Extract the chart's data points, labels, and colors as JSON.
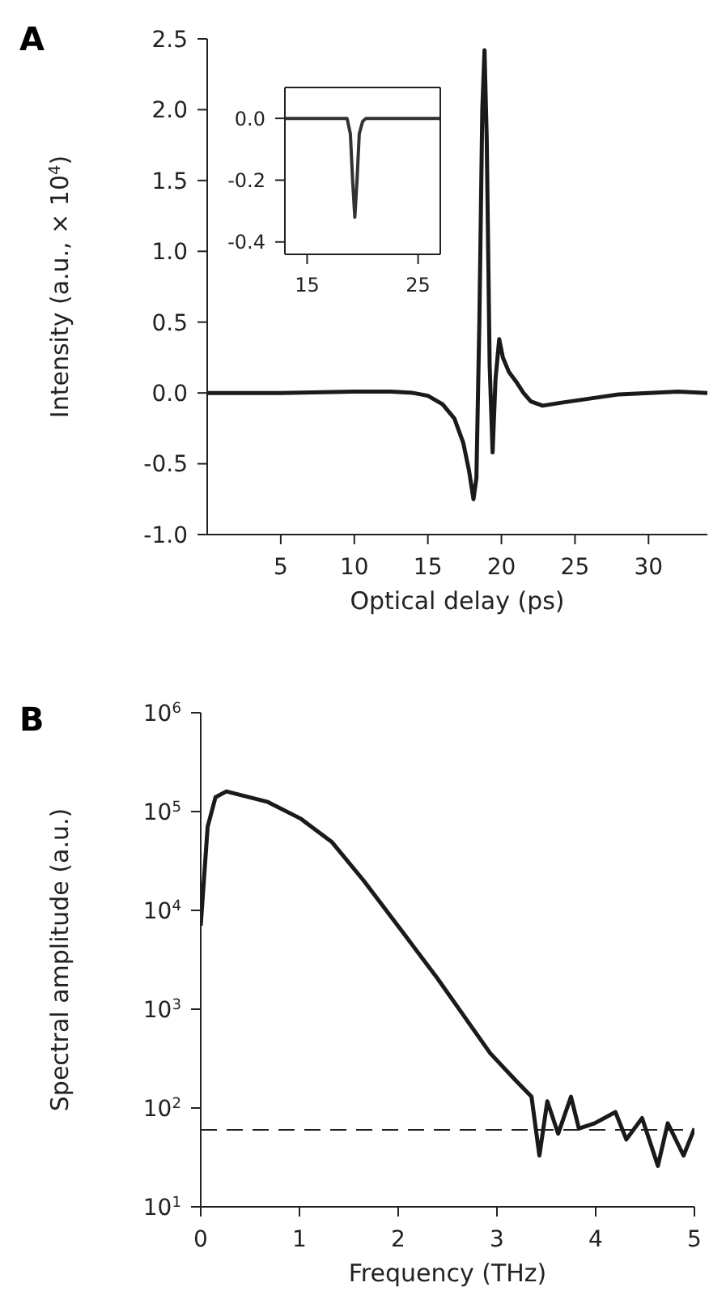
{
  "chart_data": [
    {
      "type": "line",
      "title": "A",
      "xlabel": "Optical delay (ps)",
      "ylabel": "Intensity (a.u., × 10$^{4}$)",
      "marker": "none",
      "x": [
        0,
        5,
        10,
        12.5,
        14,
        15,
        16,
        16.8,
        17.4,
        17.8,
        18.1,
        18.3,
        18.5,
        18.7,
        18.85,
        19.0,
        19.2,
        19.4,
        19.6,
        19.85,
        20.1,
        20.5,
        21.0,
        21.5,
        22.0,
        22.8,
        24,
        26,
        28,
        30,
        32,
        34
      ],
      "series": [
        {
          "color": "#1a1a1a",
          "values": [
            0,
            0,
            0.01,
            0.01,
            0,
            -0.02,
            -0.08,
            -0.18,
            -0.35,
            -0.55,
            -0.75,
            -0.6,
            0.5,
            2.0,
            2.42,
            1.8,
            0.2,
            -0.42,
            0.1,
            0.38,
            0.25,
            0.15,
            0.08,
            0.0,
            -0.06,
            -0.09,
            -0.07,
            -0.04,
            -0.01,
            0,
            0.01,
            0
          ]
        }
      ],
      "xlim": [
        0,
        34
      ],
      "xticks": [
        5,
        10,
        15,
        20,
        25,
        30
      ],
      "ylim": [
        -1,
        2.5
      ],
      "yticks": [
        {
          "value": -1,
          "label": "-1.0"
        },
        {
          "value": -0.5,
          "label": "-0.5"
        },
        {
          "value": 0,
          "label": "0.0"
        },
        {
          "value": 0.5,
          "label": "0.5"
        },
        {
          "value": 1,
          "label": "1.0"
        },
        {
          "value": 1.5,
          "label": "1.5"
        },
        {
          "value": 2,
          "label": "2.0"
        },
        {
          "value": 2.5,
          "label": "2.5"
        }
      ]
    },
    {
      "type": "line",
      "marker": "none",
      "x": [
        13,
        16,
        18.6,
        18.9,
        19.1,
        19.3,
        19.5,
        19.7,
        20.0,
        20.3,
        27
      ],
      "series": [
        {
          "color": "#333333",
          "values": [
            0,
            0,
            0,
            -0.05,
            -0.2,
            -0.32,
            -0.2,
            -0.05,
            -0.01,
            0,
            0
          ]
        }
      ],
      "xlim": [
        13,
        27
      ],
      "xticks": [
        15,
        25
      ],
      "ylim": [
        -0.44,
        0.1
      ],
      "yticks": [
        {
          "value": -0.4,
          "label": "-0.4"
        },
        {
          "value": -0.2,
          "label": "-0.2"
        },
        {
          "value": 0,
          "label": "0.0"
        }
      ]
    },
    {
      "type": "line",
      "title": "B",
      "xlabel": "Frequency (THz)",
      "ylabel": "Spectral amplitude (a.u.)",
      "marker": "none",
      "log": "y",
      "x": [
        0,
        0.07,
        0.15,
        0.26,
        0.68,
        1.01,
        1.33,
        1.65,
        2.02,
        2.39,
        2.66,
        2.93,
        3.19,
        3.35,
        3.43,
        3.51,
        3.62,
        3.75,
        3.83,
        3.99,
        4.2,
        4.31,
        4.47,
        4.63,
        4.73,
        4.89,
        5.0
      ],
      "series": [
        {
          "color": "#1a1a1a",
          "values": [
            7000,
            70000,
            140000,
            160000,
            125000,
            85000,
            49000,
            20000,
            6500,
            2100,
            870,
            360,
            190,
            130,
            33,
            117,
            55,
            130,
            62,
            70,
            91,
            48,
            79,
            26,
            70,
            33,
            62
          ]
        }
      ],
      "xlim": [
        0,
        5
      ],
      "xticks": [
        0,
        1,
        2,
        3,
        4,
        5
      ],
      "ylim": [
        10,
        1000000
      ],
      "yticks": [
        {
          "value": 10,
          "label": "10$^{1}$"
        },
        {
          "value": 100,
          "label": "10$^{2}$"
        },
        {
          "value": 1000,
          "label": "10$^{3}$"
        },
        {
          "value": 10000,
          "label": "10$^{4}$"
        },
        {
          "value": 100000,
          "label": "10$^{5}$"
        },
        {
          "value": 1000000,
          "label": "10$^{6}$"
        }
      ],
      "ref_lines": [
        {
          "axis": "y",
          "value": 60,
          "color": "#222222",
          "line_style": "dashed"
        }
      ]
    }
  ]
}
